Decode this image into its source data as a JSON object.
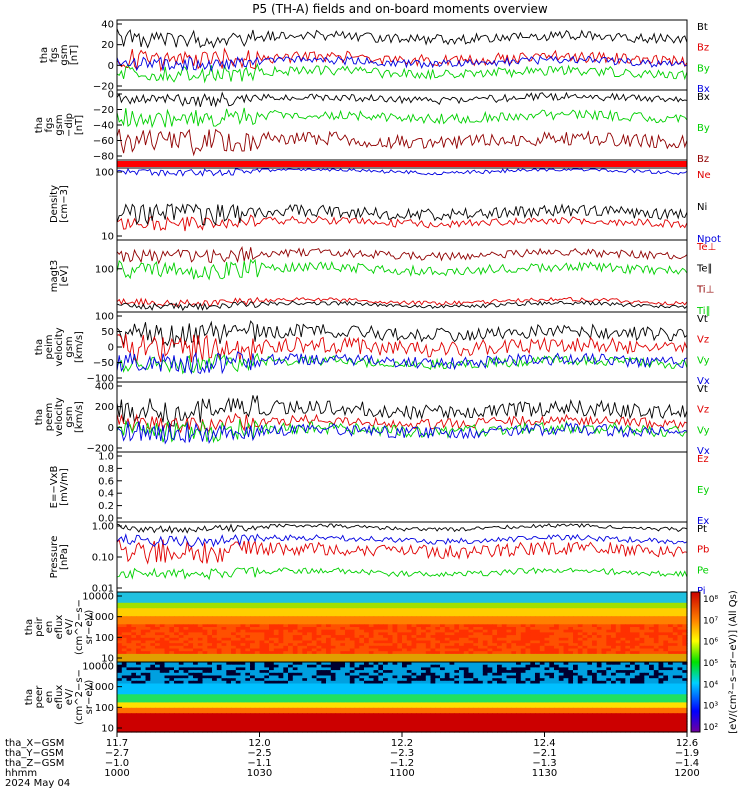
{
  "title": "P5 (TH-A) fields and on-board moments overview",
  "colors": {
    "black": "#000000",
    "red": "#e00000",
    "green": "#00d000",
    "blue": "#0000e0",
    "darkred": "#900000"
  },
  "panels": [
    {
      "id": "p1",
      "ylabel": [
        "tha",
        "fgs",
        "gsm",
        "[nT]"
      ],
      "yticks": [
        "40",
        "20",
        "0",
        "−20"
      ],
      "legend": [
        [
          "Bt",
          "black"
        ],
        [
          "Bz",
          "red"
        ],
        [
          "By",
          "green"
        ],
        [
          "Bx",
          "blue"
        ]
      ]
    },
    {
      "id": "p2",
      "ylabel": [
        "tha",
        "fgs",
        "gsm",
        "−dip",
        "[nT]"
      ],
      "yticks": [
        "0",
        "−20",
        "−40",
        "−60",
        "−80"
      ],
      "legend": [
        [
          "Bx",
          "black"
        ],
        [
          "By",
          "green"
        ],
        [
          "Bz",
          "darkred"
        ]
      ]
    },
    {
      "id": "p3",
      "ylabel": [],
      "yticks": [],
      "legend": []
    },
    {
      "id": "p4",
      "ylabel": [
        "Density",
        "[cm−3]"
      ],
      "yticks": [
        "100",
        "10"
      ],
      "legend": [
        [
          "Ne",
          "red"
        ],
        [
          "Ni",
          "black"
        ],
        [
          "Npot",
          "blue"
        ]
      ]
    },
    {
      "id": "p5",
      "ylabel": [
        "magt3",
        "[eV]"
      ],
      "yticks": [
        "100"
      ],
      "legend": [
        [
          "Te⊥",
          "red"
        ],
        [
          "Te∥",
          "black"
        ],
        [
          "Ti⊥",
          "darkred"
        ],
        [
          "Ti∥",
          "green"
        ]
      ]
    },
    {
      "id": "p6",
      "ylabel": [
        "tha",
        "peim",
        "velocity",
        "gsm",
        "[km/s]"
      ],
      "yticks": [
        "100",
        "50",
        "0",
        "−50",
        "−100"
      ],
      "legend": [
        [
          "Vt",
          "black"
        ],
        [
          "Vz",
          "red"
        ],
        [
          "Vy",
          "green"
        ],
        [
          "Vx",
          "blue"
        ]
      ]
    },
    {
      "id": "p7",
      "ylabel": [
        "tha",
        "peem",
        "velocity",
        "gsm",
        "[km/s]"
      ],
      "yticks": [
        "400",
        "200",
        "0",
        "−200"
      ],
      "legend": [
        [
          "Vt",
          "black"
        ],
        [
          "Vz",
          "red"
        ],
        [
          "Vy",
          "green"
        ],
        [
          "Vx",
          "blue"
        ]
      ]
    },
    {
      "id": "p8",
      "ylabel": [
        "E=−VxB",
        "[mV/m]"
      ],
      "yticks": [
        "1.0",
        "0.8",
        "0.6",
        "0.4",
        "0.2",
        "0.0"
      ],
      "legend": [
        [
          "Ez",
          "red"
        ],
        [
          "Ey",
          "green"
        ],
        [
          "Ex",
          "blue"
        ]
      ]
    },
    {
      "id": "p9",
      "ylabel": [
        "Pressure",
        "[nPa]"
      ],
      "yticks": [
        "1.00",
        "0.10",
        "0.01"
      ],
      "legend": [
        [
          "Pt",
          "black"
        ],
        [
          "Pb",
          "red"
        ],
        [
          "Pe",
          "green"
        ],
        [
          "Pi",
          "blue"
        ]
      ]
    },
    {
      "id": "p10",
      "ylabel": [
        "tha",
        "peir",
        "en",
        "eflux",
        "eV/",
        "(cm^2−s−",
        "sr−eV)"
      ],
      "yticks": [
        "10000",
        "1000",
        "100",
        "10"
      ],
      "legend": []
    },
    {
      "id": "p11",
      "ylabel": [
        "tha",
        "peer",
        "en",
        "eflux",
        "eV/",
        "(cm^2−s−",
        "sr−eV)"
      ],
      "yticks": [
        "10000",
        "1000",
        "100",
        "10"
      ],
      "legend": []
    }
  ],
  "colorbar_ticks": [
    "10⁸",
    "10⁷",
    "10⁶",
    "10⁵",
    "10⁴",
    "10³",
    "10²"
  ],
  "colorbar_label": "[eV/(cm²−s−sr−eV)] (All Qs)",
  "xaxis": {
    "row_labels": [
      "tha_X−GSM",
      "tha_Y−GSM",
      "tha_Z−GSM",
      "hhmm",
      "2024 May 04"
    ],
    "ticks": [
      [
        "11.7",
        "−2.7",
        "−1.0",
        "1000"
      ],
      [
        "12.0",
        "−2.5",
        "−1.1",
        "1030"
      ],
      [
        "12.2",
        "−2.3",
        "−1.2",
        "1100"
      ],
      [
        "12.4",
        "−2.1",
        "−1.3",
        "1130"
      ],
      [
        "12.6",
        "−1.9",
        "−1.4",
        "1200"
      ]
    ]
  },
  "chart_data": [
    {
      "type": "line",
      "title": "tha fgs gsm [nT]",
      "ylim": [
        -30,
        40
      ],
      "series": [
        {
          "name": "Bt",
          "values": [
            20,
            35,
            30,
            25,
            22,
            20
          ]
        },
        {
          "name": "Bz",
          "values": [
            0,
            10,
            5,
            8,
            10,
            5
          ]
        },
        {
          "name": "By",
          "values": [
            -10,
            -15,
            -18,
            -12,
            -15,
            -18
          ]
        },
        {
          "name": "Bx",
          "values": [
            0,
            -5,
            -3,
            -2,
            -3,
            -5
          ]
        }
      ]
    },
    {
      "type": "line",
      "title": "tha fgs gsm −dip [nT]",
      "ylim": [
        -90,
        0
      ],
      "series": [
        {
          "name": "Bx",
          "values": [
            -5,
            -8,
            -5,
            -5,
            -5,
            -5
          ]
        },
        {
          "name": "By",
          "values": [
            -20,
            -25,
            -30,
            -28,
            -25,
            -25
          ]
        },
        {
          "name": "Bz",
          "values": [
            -50,
            -60,
            -75,
            -70,
            -65,
            -60
          ]
        }
      ]
    },
    {
      "type": "line",
      "title": "Density [cm−3]",
      "ylim": [
        8,
        110
      ],
      "series": [
        {
          "name": "Ne",
          "values": [
            12,
            15,
            14,
            15,
            14,
            13
          ]
        },
        {
          "name": "Ni",
          "values": [
            20,
            25,
            22,
            22,
            20,
            18
          ]
        },
        {
          "name": "Npot",
          "values": [
            100,
            100,
            100,
            100,
            85,
            80
          ]
        }
      ]
    },
    {
      "type": "line",
      "title": "magt3 [eV]",
      "ylim": [
        20,
        250
      ],
      "series": [
        {
          "name": "Te⊥",
          "values": [
            30,
            30,
            32,
            32,
            32,
            34
          ]
        },
        {
          "name": "Te∥",
          "values": [
            28,
            28,
            28,
            29,
            29,
            30
          ]
        },
        {
          "name": "Ti⊥",
          "values": [
            150,
            180,
            150,
            150,
            150,
            150
          ]
        },
        {
          "name": "Ti∥",
          "values": [
            90,
            120,
            80,
            85,
            85,
            90
          ]
        }
      ]
    },
    {
      "type": "line",
      "title": "tha peim velocity gsm [km/s]",
      "ylim": [
        -110,
        120
      ],
      "series": [
        {
          "name": "Vt",
          "values": [
            70,
            60,
            75,
            80,
            60,
            50
          ]
        },
        {
          "name": "Vz",
          "values": [
            10,
            20,
            10,
            20,
            15,
            10
          ]
        },
        {
          "name": "Vy",
          "values": [
            -40,
            -40,
            -30,
            -30,
            -35,
            -30
          ]
        },
        {
          "name": "Vx",
          "values": [
            -40,
            -30,
            -50,
            -40,
            -40,
            -40
          ]
        }
      ]
    },
    {
      "type": "line",
      "title": "tha peem velocity gsm [km/s]",
      "ylim": [
        -300,
        400
      ],
      "series": [
        {
          "name": "Vt",
          "values": [
            120,
            150,
            120,
            100,
            100,
            90
          ]
        },
        {
          "name": "Vz",
          "values": [
            10,
            0,
            20,
            20,
            10,
            10
          ]
        },
        {
          "name": "Vy",
          "values": [
            -30,
            -60,
            -20,
            -30,
            -30,
            -20
          ]
        },
        {
          "name": "Vx",
          "values": [
            -40,
            -80,
            -40,
            -40,
            -40,
            -30
          ]
        }
      ]
    },
    {
      "type": "line",
      "title": "E=−VxB [mV/m]",
      "ylim": [
        0,
        1
      ],
      "series": [
        {
          "name": "Ez",
          "values": []
        },
        {
          "name": "Ey",
          "values": []
        },
        {
          "name": "Ex",
          "values": []
        }
      ]
    },
    {
      "type": "line",
      "title": "Pressure [nPa]",
      "ylim": [
        0.01,
        1.2
      ],
      "series": [
        {
          "name": "Pt",
          "values": [
            0.8,
            0.7,
            0.6,
            0.55,
            0.5,
            0.5
          ]
        },
        {
          "name": "Pb",
          "values": [
            0.15,
            0.1,
            0.2,
            0.12,
            0.1,
            0.1
          ]
        },
        {
          "name": "Pe",
          "values": [
            0.04,
            0.04,
            0.05,
            0.04,
            0.04,
            0.05
          ]
        },
        {
          "name": "Pi",
          "values": [
            0.6,
            0.55,
            0.4,
            0.35,
            0.3,
            0.3
          ]
        }
      ]
    },
    {
      "type": "heatmap",
      "title": "tha peir en eflux",
      "ylim": [
        10,
        20000
      ]
    },
    {
      "type": "heatmap",
      "title": "tha peer en eflux",
      "ylim": [
        10,
        20000
      ]
    }
  ]
}
